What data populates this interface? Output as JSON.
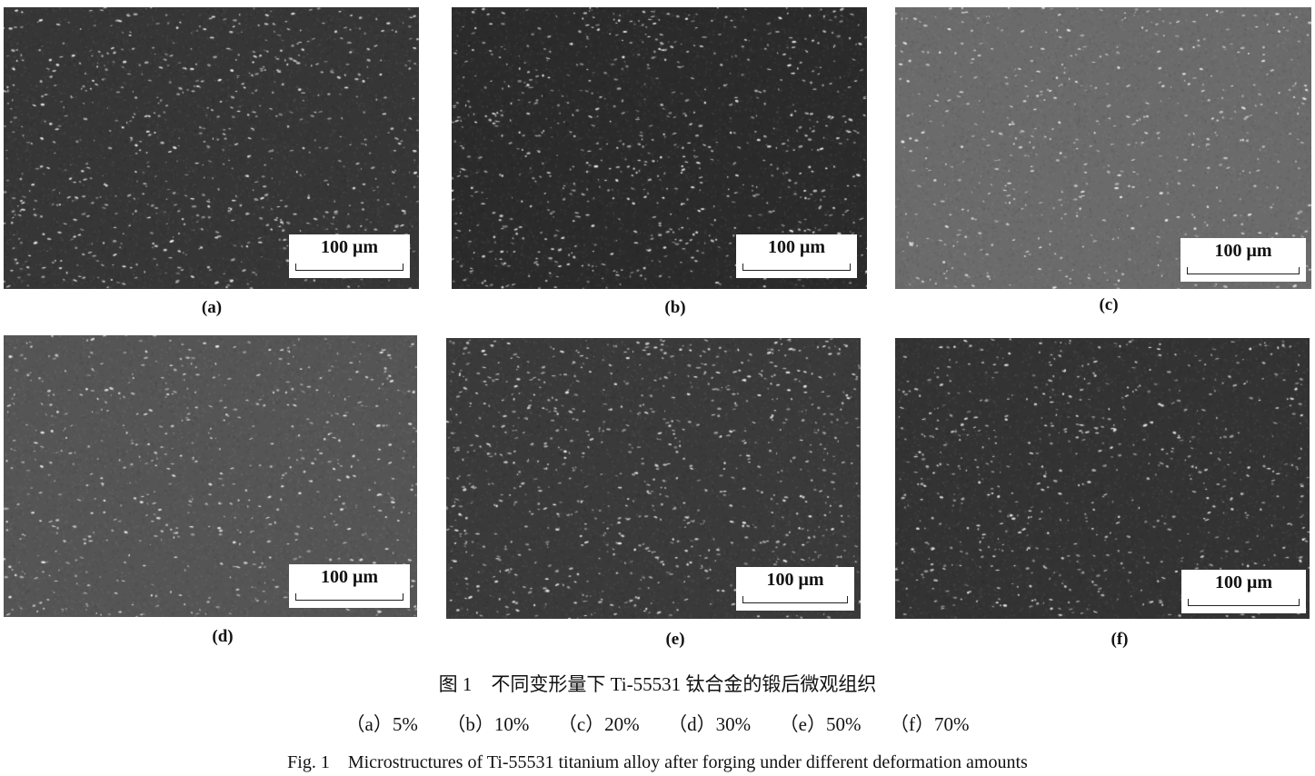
{
  "panels": [
    {
      "label": "(a)",
      "scale": "100 μm",
      "background": "#363636",
      "density": 0.55
    },
    {
      "label": "(b)",
      "scale": "100 μm",
      "background": "#2b2b2b",
      "density": 0.6
    },
    {
      "label": "(c)",
      "scale": "100 μm",
      "background": "#6b6b6b",
      "density": 0.4
    },
    {
      "label": "(d)",
      "scale": "100 μm",
      "background": "#555555",
      "density": 0.45
    },
    {
      "label": "(e)",
      "scale": "100 μm",
      "background": "#3a3a3a",
      "density": 0.65
    },
    {
      "label": "(f)",
      "scale": "100 μm",
      "background": "#333333",
      "density": 0.5
    }
  ],
  "caption": {
    "zh": "图 1　不同变形量下 Ti-55531 钛合金的锻后微观组织",
    "subcaptions": "（a）5%　　（b）10%　　（c）20%　　（d）30%　　（e）50%　　（f）70%",
    "en": "Fig. 1　Microstructures of Ti-55531 titanium alloy after forging under different deformation amounts"
  }
}
